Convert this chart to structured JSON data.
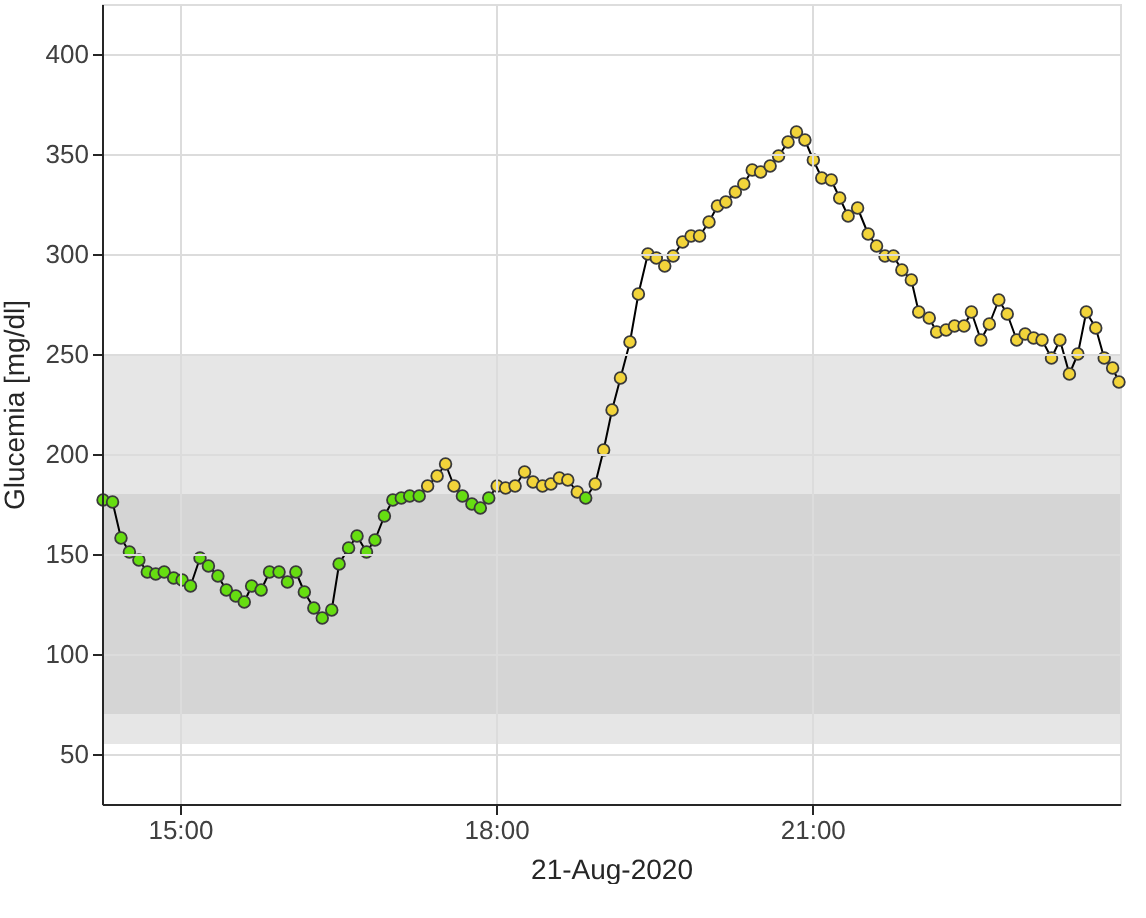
{
  "chart_data": {
    "type": "line",
    "xlabel": "21-Aug-2020",
    "ylabel": "Glucemia [mg/dl]",
    "xlim": [
      14.26,
      23.92
    ],
    "xticks": [
      {
        "value": 15,
        "label": "15:00"
      },
      {
        "value": 18,
        "label": "18:00"
      },
      {
        "value": 21,
        "label": "21:00"
      }
    ],
    "ylim": [
      25,
      425
    ],
    "yticks": [
      50,
      100,
      150,
      200,
      250,
      300,
      350,
      400
    ],
    "grid": true,
    "marker": "circle",
    "line_style": "solid",
    "bands": [
      {
        "axis": "y",
        "from": 55,
        "to": 250,
        "color": "#e6e6e6"
      },
      {
        "axis": "y",
        "from": 70,
        "to": 180,
        "color": "#d5d5d5"
      }
    ],
    "x": [
      14.27,
      14.36,
      14.44,
      14.52,
      14.61,
      14.69,
      14.77,
      14.85,
      14.94,
      15.02,
      15.1,
      15.19,
      15.27,
      15.36,
      15.44,
      15.53,
      15.61,
      15.68,
      15.77,
      15.85,
      15.94,
      16.02,
      16.1,
      16.18,
      16.27,
      16.35,
      16.44,
      16.51,
      16.6,
      16.68,
      16.77,
      16.85,
      16.94,
      17.02,
      17.1,
      17.18,
      17.27,
      17.35,
      17.44,
      17.52,
      17.6,
      17.68,
      17.77,
      17.85,
      17.93,
      18.01,
      18.09,
      18.18,
      18.27,
      18.35,
      18.44,
      18.52,
      18.6,
      18.68,
      18.77,
      18.85,
      18.94,
      19.02,
      19.1,
      19.18,
      19.27,
      19.35,
      19.44,
      19.52,
      19.6,
      19.68,
      19.77,
      19.85,
      19.93,
      20.02,
      20.1,
      20.18,
      20.27,
      20.35,
      20.43,
      20.51,
      20.6,
      20.68,
      20.77,
      20.85,
      20.93,
      21.01,
      21.09,
      21.18,
      21.26,
      21.34,
      21.43,
      21.53,
      21.61,
      21.69,
      21.77,
      21.85,
      21.94,
      22.01,
      22.11,
      22.18,
      22.27,
      22.35,
      22.44,
      22.51,
      22.6,
      22.68,
      22.77,
      22.85,
      22.94,
      23.02,
      23.1,
      23.18,
      23.27,
      23.35,
      23.44,
      23.52,
      23.6,
      23.69,
      23.77,
      23.85,
      23.91
    ],
    "series": [
      {
        "color": "#000000",
        "values": [
          177,
          176,
          158,
          151,
          147,
          141,
          140,
          141,
          138,
          137,
          134,
          148,
          144,
          139,
          132,
          129,
          126,
          134,
          132,
          141,
          141,
          136,
          141,
          131,
          123,
          118,
          122,
          145,
          153,
          159,
          151,
          157,
          169,
          177,
          178,
          179,
          179,
          184,
          189,
          195,
          184,
          179,
          175,
          173,
          178,
          184,
          183,
          184,
          191,
          186,
          184,
          185,
          188,
          187,
          181,
          178,
          185,
          202,
          222,
          238,
          256,
          280,
          300,
          298,
          294,
          299,
          306,
          309,
          309,
          316,
          324,
          326,
          331,
          335,
          342,
          341,
          344,
          349,
          356,
          361,
          357,
          347,
          338,
          337,
          328,
          319,
          323,
          310,
          304,
          299,
          299,
          292,
          287,
          271,
          268,
          261,
          262,
          264,
          264,
          271,
          257,
          265,
          277,
          270,
          257,
          260,
          258,
          257,
          248,
          257,
          240,
          250,
          271,
          263,
          248,
          243,
          236
        ],
        "colors": [
          "#66dd11",
          "#66dd11",
          "#66dd11",
          "#66dd11",
          "#66dd11",
          "#66dd11",
          "#66dd11",
          "#66dd11",
          "#66dd11",
          "#66dd11",
          "#66dd11",
          "#66dd11",
          "#66dd11",
          "#66dd11",
          "#66dd11",
          "#66dd11",
          "#66dd11",
          "#66dd11",
          "#66dd11",
          "#66dd11",
          "#66dd11",
          "#66dd11",
          "#66dd11",
          "#66dd11",
          "#66dd11",
          "#66dd11",
          "#66dd11",
          "#66dd11",
          "#66dd11",
          "#66dd11",
          "#66dd11",
          "#66dd11",
          "#66dd11",
          "#66dd11",
          "#66dd11",
          "#66dd11",
          "#66dd11",
          "#f2d43a",
          "#f2d43a",
          "#f2d43a",
          "#f2d43a",
          "#66dd11",
          "#66dd11",
          "#66dd11",
          "#66dd11",
          "#f2d43a",
          "#f2d43a",
          "#f2d43a",
          "#f2d43a",
          "#f2d43a",
          "#f2d43a",
          "#f2d43a",
          "#f2d43a",
          "#f2d43a",
          "#f2d43a",
          "#66dd11",
          "#f2d43a",
          "#f2d43a",
          "#f2d43a",
          "#f2d43a",
          "#f2d43a",
          "#f2d43a",
          "#f2d43a",
          "#f2d43a",
          "#f2d43a",
          "#f2d43a",
          "#f2d43a",
          "#f2d43a",
          "#f2d43a",
          "#f2d43a",
          "#f2d43a",
          "#f2d43a",
          "#f2d43a",
          "#f2d43a",
          "#f2d43a",
          "#f2d43a",
          "#f2d43a",
          "#f2d43a",
          "#f2d43a",
          "#f2d43a",
          "#f2d43a",
          "#f2d43a",
          "#f2d43a",
          "#f2d43a",
          "#f2d43a",
          "#f2d43a",
          "#f2d43a",
          "#f2d43a",
          "#f2d43a",
          "#f2d43a",
          "#f2d43a",
          "#f2d43a",
          "#f2d43a",
          "#f2d43a",
          "#f2d43a",
          "#f2d43a",
          "#f2d43a",
          "#f2d43a",
          "#f2d43a",
          "#f2d43a",
          "#f2d43a",
          "#f2d43a",
          "#f2d43a",
          "#f2d43a",
          "#f2d43a",
          "#f2d43a",
          "#f2d43a",
          "#f2d43a",
          "#f2d43a",
          "#f2d43a",
          "#f2d43a",
          "#f2d43a",
          "#f2d43a",
          "#f2d43a",
          "#f2d43a",
          "#f2d43a",
          "#f2d43a"
        ]
      }
    ]
  }
}
